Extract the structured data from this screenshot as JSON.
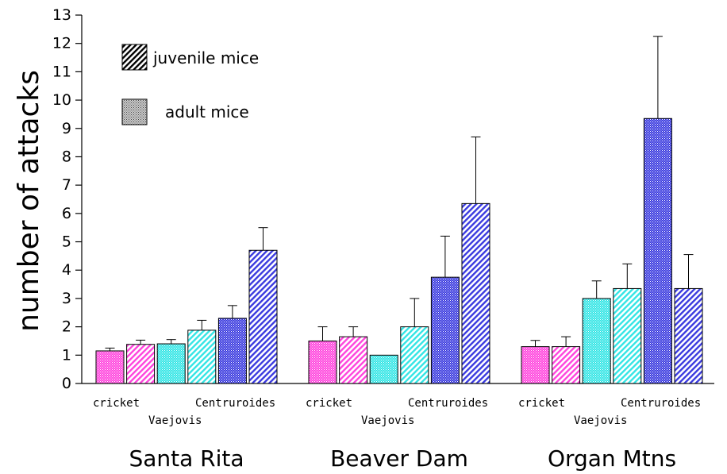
{
  "chart_data": {
    "type": "bar",
    "ylabel": "number of attacks",
    "ylim": [
      0,
      13
    ],
    "yticks": [
      0,
      1,
      2,
      3,
      4,
      5,
      6,
      7,
      8,
      9,
      10,
      11,
      12,
      13
    ],
    "legend": {
      "placement": "top-left",
      "entries": [
        {
          "label": "juvenile mice",
          "pattern": "hatch"
        },
        {
          "label": "adult mice",
          "pattern": "dots"
        }
      ]
    },
    "colors": {
      "cricket": "#ff44dd",
      "Vaejovis": "#33e5e5",
      "Centruroides": "#3a3adf"
    },
    "groups": [
      {
        "site": "Santa Rita",
        "bars": [
          {
            "prey": "cricket",
            "mouse": "adult mice",
            "value": 1.15,
            "error": 0.1
          },
          {
            "prey": "cricket",
            "mouse": "juvenile mice",
            "value": 1.38,
            "error": 0.15
          },
          {
            "prey": "Vaejovis",
            "mouse": "adult mice",
            "value": 1.4,
            "error": 0.15
          },
          {
            "prey": "Vaejovis",
            "mouse": "juvenile mice",
            "value": 1.88,
            "error": 0.35
          },
          {
            "prey": "Centruroides",
            "mouse": "adult mice",
            "value": 2.3,
            "error": 0.45
          },
          {
            "prey": "Centruroides",
            "mouse": "juvenile mice",
            "value": 4.7,
            "error": 0.8
          }
        ]
      },
      {
        "site": "Beaver Dam",
        "bars": [
          {
            "prey": "cricket",
            "mouse": "adult mice",
            "value": 1.5,
            "error": 0.5
          },
          {
            "prey": "cricket",
            "mouse": "juvenile mice",
            "value": 1.65,
            "error": 0.35
          },
          {
            "prey": "Vaejovis",
            "mouse": "adult mice",
            "value": 1.0,
            "error": 0.0
          },
          {
            "prey": "Vaejovis",
            "mouse": "juvenile mice",
            "value": 2.0,
            "error": 1.0
          },
          {
            "prey": "Centruroides",
            "mouse": "adult mice",
            "value": 3.75,
            "error": 1.45
          },
          {
            "prey": "Centruroides",
            "mouse": "juvenile mice",
            "value": 6.35,
            "error": 2.35
          }
        ]
      },
      {
        "site": "Organ Mtns",
        "bars": [
          {
            "prey": "cricket",
            "mouse": "adult mice",
            "value": 1.3,
            "error": 0.22
          },
          {
            "prey": "cricket",
            "mouse": "juvenile mice",
            "value": 1.3,
            "error": 0.35
          },
          {
            "prey": "Vaejovis",
            "mouse": "adult mice",
            "value": 3.0,
            "error": 0.62
          },
          {
            "prey": "Vaejovis",
            "mouse": "juvenile mice",
            "value": 3.35,
            "error": 0.87
          },
          {
            "prey": "Centruroides",
            "mouse": "adult mice",
            "value": 9.35,
            "error": 2.9
          },
          {
            "prey": "Centruroides",
            "mouse": "juvenile mice",
            "value": 3.35,
            "error": 1.2
          }
        ]
      }
    ]
  }
}
